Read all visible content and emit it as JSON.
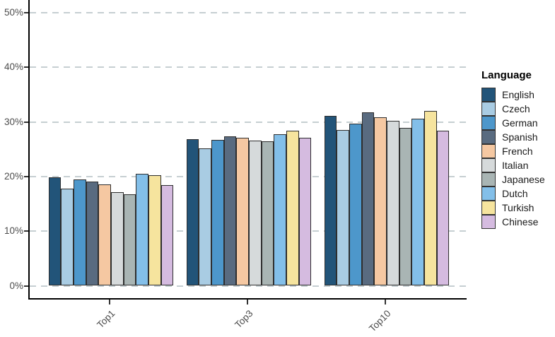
{
  "chart_data": {
    "type": "bar",
    "title": "",
    "legend_title": "Language",
    "legend_position": "right",
    "grid": "horizontal-dashed",
    "categories": [
      "Top1",
      "Top3",
      "Top10"
    ],
    "yticks": [
      "0%",
      "10%",
      "20%",
      "30%",
      "40%",
      "50%"
    ],
    "ytick_values": [
      0,
      10,
      20,
      30,
      40,
      50
    ],
    "ylim": [
      0,
      52
    ],
    "series": [
      {
        "name": "English",
        "color": "#225479",
        "values": [
          19.9,
          26.9,
          31.1
        ]
      },
      {
        "name": "Czech",
        "color": "#A9CCE3",
        "values": [
          17.8,
          25.2,
          28.5
        ]
      },
      {
        "name": "German",
        "color": "#4D97CB",
        "values": [
          19.5,
          26.7,
          29.7
        ]
      },
      {
        "name": "Spanish",
        "color": "#596B80",
        "values": [
          19.1,
          27.4,
          31.7
        ]
      },
      {
        "name": "French",
        "color": "#F5C8A2",
        "values": [
          18.6,
          27.1,
          30.9
        ]
      },
      {
        "name": "Italian",
        "color": "#D6DADB",
        "values": [
          17.2,
          26.6,
          30.2
        ]
      },
      {
        "name": "Japanese",
        "color": "#A9B5B4",
        "values": [
          16.8,
          26.5,
          28.9
        ]
      },
      {
        "name": "Dutch",
        "color": "#83BFE9",
        "values": [
          20.5,
          27.7,
          30.6
        ]
      },
      {
        "name": "Turkish",
        "color": "#F6E49E",
        "values": [
          20.3,
          28.4,
          32.0
        ]
      },
      {
        "name": "Chinese",
        "color": "#D5BBE0",
        "values": [
          18.4,
          27.1,
          28.4
        ]
      }
    ]
  }
}
